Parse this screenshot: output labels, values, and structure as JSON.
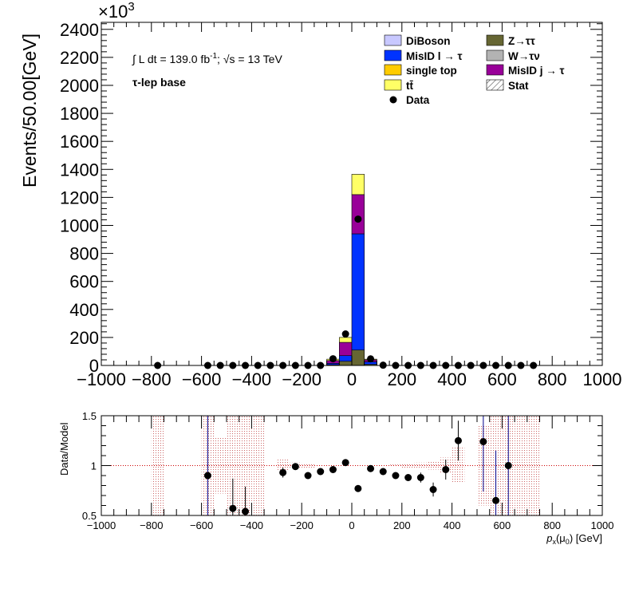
{
  "top_panel": {
    "scale_base": "×10",
    "scale_exp": "3",
    "ylabel": "Events/50.00[GeV]",
    "lumi_prefix": "∫ L dt = 139.0 fb",
    "lumi_sup": "-1",
    "lumi_sep": ";  ",
    "energy_text": "√s = 13 TeV",
    "region": "τ-lep base"
  },
  "legend": [
    {
      "key": "diboson",
      "label": "DiBoson",
      "color": "#c8c8ff",
      "style": "box"
    },
    {
      "key": "ztt",
      "label": "Z→ττ",
      "color": "#666633",
      "style": "box"
    },
    {
      "key": "misid_l",
      "label": "MisID l → τ",
      "color": "#0033ff",
      "style": "box"
    },
    {
      "key": "wtn",
      "label": "W→τν",
      "color": "#b3b3b3",
      "style": "box"
    },
    {
      "key": "single_top",
      "label": "single top",
      "color": "#ffcc00",
      "style": "box"
    },
    {
      "key": "misid_j",
      "label": "MisID j → τ",
      "color": "#990099",
      "style": "box"
    },
    {
      "key": "ttbar",
      "label": "tt̄",
      "color": "#ffff66",
      "style": "box"
    },
    {
      "key": "stat",
      "label": "Stat",
      "color": "#000000",
      "style": "hatch"
    },
    {
      "key": "data",
      "label": "Data",
      "color": "#000000",
      "style": "marker"
    }
  ],
  "chart_data": [
    {
      "type": "bar",
      "stacked": true,
      "xlim": [
        -1000,
        1000
      ],
      "ylim": [
        0,
        2450
      ],
      "y_units": "x10^3 events",
      "x_ticks": [
        -1000,
        -800,
        -600,
        -400,
        -200,
        0,
        200,
        400,
        600,
        800,
        1000
      ],
      "y_ticks": [
        0,
        200,
        400,
        600,
        800,
        1000,
        1200,
        1400,
        1600,
        1800,
        2000,
        2200,
        2400
      ],
      "bin_width": 50,
      "stack_order": [
        "ztt",
        "misid_l",
        "misid_j",
        "ttbar"
      ],
      "stacks": [
        {
          "x": [
            -100,
            -50
          ],
          "ztt": 5,
          "misid_l": 10,
          "misid_j": 20,
          "ttbar": 10
        },
        {
          "x": [
            -50,
            0
          ],
          "ztt": 30,
          "misid_l": 40,
          "misid_j": 95,
          "ttbar": 35
        },
        {
          "x": [
            0,
            50
          ],
          "ztt": 110,
          "misid_l": 830,
          "misid_j": 280,
          "ttbar": 145
        },
        {
          "x": [
            50,
            100
          ],
          "ztt": 8,
          "misid_l": 18,
          "misid_j": 14,
          "ttbar": 5
        }
      ],
      "data": [
        {
          "x": -775,
          "y": 0
        },
        {
          "x": -575,
          "y": 0
        },
        {
          "x": -525,
          "y": 0
        },
        {
          "x": -475,
          "y": 0
        },
        {
          "x": -425,
          "y": 0
        },
        {
          "x": -375,
          "y": 0
        },
        {
          "x": -325,
          "y": 0
        },
        {
          "x": -275,
          "y": 0
        },
        {
          "x": -225,
          "y": 0
        },
        {
          "x": -175,
          "y": 0
        },
        {
          "x": -125,
          "y": 0
        },
        {
          "x": -75,
          "y": 48
        },
        {
          "x": -25,
          "y": 225
        },
        {
          "x": 25,
          "y": 1045
        },
        {
          "x": 75,
          "y": 47
        },
        {
          "x": 125,
          "y": 2
        },
        {
          "x": 175,
          "y": 0
        },
        {
          "x": 225,
          "y": 0
        },
        {
          "x": 275,
          "y": 0
        },
        {
          "x": 325,
          "y": 0
        },
        {
          "x": 375,
          "y": 0
        },
        {
          "x": 425,
          "y": 0
        },
        {
          "x": 475,
          "y": 0
        },
        {
          "x": 525,
          "y": 0
        },
        {
          "x": 575,
          "y": 0
        },
        {
          "x": 625,
          "y": 0
        },
        {
          "x": 675,
          "y": 0
        },
        {
          "x": 725,
          "y": 0
        }
      ]
    },
    {
      "type": "scatter",
      "ylabel": "Data/Model",
      "xlabel": "p_x(μ_0) [GeV]",
      "xlim": [
        -1000,
        1000
      ],
      "ylim": [
        0.5,
        1.5
      ],
      "x_ticks": [
        -1000,
        -800,
        -600,
        -400,
        -200,
        0,
        200,
        400,
        600,
        800,
        1000
      ],
      "y_ticks": [
        0.5,
        1,
        1.5
      ],
      "reference_line": 1,
      "stat_band": [
        {
          "x": [
            -800,
            -750
          ],
          "lo": 0.5,
          "hi": 1.5
        },
        {
          "x": [
            -600,
            -550
          ],
          "lo": 0.5,
          "hi": 1.5
        },
        {
          "x": [
            -550,
            -500
          ],
          "lo": 0.72,
          "hi": 1.28
        },
        {
          "x": [
            -500,
            -450
          ],
          "lo": 0.5,
          "hi": 1.5
        },
        {
          "x": [
            -450,
            -400
          ],
          "lo": 0.5,
          "hi": 1.5
        },
        {
          "x": [
            -400,
            -350
          ],
          "lo": 0.5,
          "hi": 1.5
        },
        {
          "x": [
            -300,
            -250
          ],
          "lo": 0.94,
          "hi": 1.06
        },
        {
          "x": [
            -250,
            -200
          ],
          "lo": 0.97,
          "hi": 1.03
        },
        {
          "x": [
            -200,
            -150
          ],
          "lo": 0.98,
          "hi": 1.02
        },
        {
          "x": [
            150,
            200
          ],
          "lo": 0.99,
          "hi": 1.01
        },
        {
          "x": [
            200,
            250
          ],
          "lo": 0.98,
          "hi": 1.02
        },
        {
          "x": [
            250,
            300
          ],
          "lo": 0.97,
          "hi": 1.03
        },
        {
          "x": [
            300,
            350
          ],
          "lo": 0.96,
          "hi": 1.04
        },
        {
          "x": [
            350,
            400
          ],
          "lo": 0.92,
          "hi": 1.08
        },
        {
          "x": [
            400,
            450
          ],
          "lo": 0.82,
          "hi": 1.18
        },
        {
          "x": [
            500,
            550
          ],
          "lo": 0.6,
          "hi": 1.4
        },
        {
          "x": [
            550,
            600
          ],
          "lo": 0.5,
          "hi": 1.5
        },
        {
          "x": [
            600,
            650
          ],
          "lo": 0.5,
          "hi": 1.5
        },
        {
          "x": [
            650,
            700
          ],
          "lo": 0.5,
          "hi": 1.5
        },
        {
          "x": [
            700,
            750
          ],
          "lo": 0.5,
          "hi": 1.5
        }
      ],
      "points": [
        {
          "x": -575,
          "y": 0.9,
          "err": 0.6
        },
        {
          "x": -475,
          "y": 0.57,
          "err": 0.3
        },
        {
          "x": -425,
          "y": 0.54,
          "err": 0.25
        },
        {
          "x": -275,
          "y": 0.93,
          "err": 0.05
        },
        {
          "x": -225,
          "y": 0.99,
          "err": 0.03
        },
        {
          "x": -175,
          "y": 0.9,
          "err": 0.02
        },
        {
          "x": -125,
          "y": 0.94,
          "err": 0.01
        },
        {
          "x": -75,
          "y": 0.96,
          "err": 0.01
        },
        {
          "x": -25,
          "y": 1.03,
          "err": 0.005
        },
        {
          "x": 25,
          "y": 0.77,
          "err": 0.005
        },
        {
          "x": 75,
          "y": 0.97,
          "err": 0.01
        },
        {
          "x": 125,
          "y": 0.94,
          "err": 0.01
        },
        {
          "x": 175,
          "y": 0.9,
          "err": 0.02
        },
        {
          "x": 225,
          "y": 0.88,
          "err": 0.03
        },
        {
          "x": 275,
          "y": 0.88,
          "err": 0.05
        },
        {
          "x": 325,
          "y": 0.76,
          "err": 0.07
        },
        {
          "x": 375,
          "y": 0.96,
          "err": 0.1
        },
        {
          "x": 425,
          "y": 1.25,
          "err": 0.2
        },
        {
          "x": 525,
          "y": 1.24,
          "err": 0.5
        },
        {
          "x": 575,
          "y": 0.65,
          "err": 0.5
        },
        {
          "x": 625,
          "y": 1.0,
          "err": 0.5
        }
      ]
    }
  ]
}
